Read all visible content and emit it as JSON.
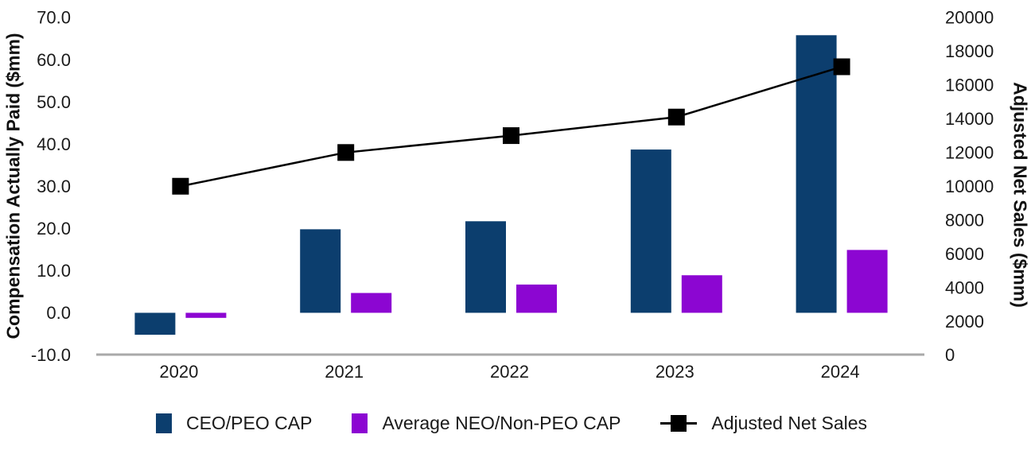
{
  "chart_data": {
    "type": "combo_bar_line",
    "title": "",
    "categories": [
      "2020",
      "2021",
      "2022",
      "2023",
      "2024"
    ],
    "series": [
      {
        "name": "CEO/PEO CAP",
        "type": "bar",
        "axis": "left",
        "color": "#0c3e6e",
        "values": [
          -5.2,
          19.8,
          21.7,
          38.7,
          65.8
        ]
      },
      {
        "name": "Average NEO/Non-PEO CAP",
        "type": "bar",
        "axis": "left",
        "color": "#8c06d2",
        "values": [
          -1.2,
          4.7,
          6.7,
          8.9,
          14.9
        ]
      },
      {
        "name": "Adjusted Net Sales",
        "type": "line",
        "axis": "right",
        "color": "#000000",
        "marker": "square",
        "values": [
          10000,
          12000,
          13000,
          14100,
          17080
        ]
      }
    ],
    "left_axis": {
      "label": "Compensation Actually Paid ($mm)",
      "min": -10,
      "max": 70,
      "ticks": [
        "70.0",
        "60.0",
        "50.0",
        "40.0",
        "30.0",
        "20.0",
        "10.0",
        "0.0",
        "-10.0"
      ]
    },
    "right_axis": {
      "label": "Adjusted Net Sales ($mm)",
      "min": 0,
      "max": 20000,
      "ticks": [
        "20000",
        "18000",
        "16000",
        "14000",
        "12000",
        "10000",
        "8000",
        "6000",
        "4000",
        "2000",
        "0"
      ]
    },
    "legend_position": "bottom",
    "grid": false,
    "colors": {
      "axis_line": "#a9a9a9",
      "text": "#1a1a1a",
      "background": "#ffffff"
    }
  }
}
